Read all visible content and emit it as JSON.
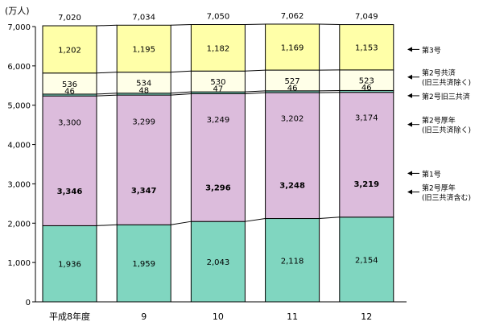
{
  "chart_data": {
    "type": "bar",
    "stacked": true,
    "y_unit_label": "(万人)",
    "ylim": [
      0,
      7000
    ],
    "y_ticks": [
      0,
      1000,
      2000,
      3000,
      4000,
      5000,
      6000,
      7000
    ],
    "y_tick_labels": [
      "0",
      "1,000",
      "2,000",
      "3,000",
      "4,000",
      "5,000",
      "6,000",
      "7,000"
    ],
    "categories": [
      "平成8年度",
      "9",
      "10",
      "11",
      "12"
    ],
    "totals": [
      7020,
      7034,
      7050,
      7062,
      7049
    ],
    "total_labels": [
      "7,020",
      "7,034",
      "7,050",
      "7,062",
      "7,049"
    ],
    "series": [
      {
        "name": "第1号",
        "values": [
          1936,
          1959,
          2043,
          2118,
          2154
        ],
        "labels": [
          "1,936",
          "1,959",
          "2,043",
          "2,118",
          "2,154"
        ],
        "color": "#80d6c0"
      },
      {
        "name": "第2号厚年(旧三共済除く)",
        "values": [
          3300,
          3299,
          3249,
          3202,
          3174
        ],
        "labels": [
          "3,300",
          "3,299",
          "3,249",
          "3,202",
          "3,174"
        ],
        "color": "#dcbcdc"
      },
      {
        "name": "第2号旧三共済",
        "values": [
          46,
          48,
          47,
          46,
          46
        ],
        "labels": [
          "46",
          "48",
          "47",
          "46",
          "46"
        ],
        "color": "#80d6c0"
      },
      {
        "name": "第2号共済(旧三共済除く)",
        "values": [
          536,
          534,
          530,
          527,
          523
        ],
        "labels": [
          "536",
          "534",
          "530",
          "527",
          "523"
        ],
        "color": "#ffffe8"
      },
      {
        "name": "第3号",
        "values": [
          1202,
          1195,
          1182,
          1169,
          1153
        ],
        "labels": [
          "1,202",
          "1,195",
          "1,182",
          "1,169",
          "1,153"
        ],
        "color": "#ffffa8"
      }
    ],
    "bracket": {
      "name": "第2号厚年(旧三共済含む)",
      "values": [
        3346,
        3347,
        3296,
        3248,
        3219
      ],
      "labels": [
        "3,346",
        "3,347",
        "3,296",
        "3,248",
        "3,219"
      ]
    },
    "legend": [
      {
        "lines": [
          "第3号"
        ],
        "series_index": 4
      },
      {
        "lines": [
          "第2号共済",
          "(旧三共済除く)"
        ],
        "series_index": 3
      },
      {
        "lines": [
          "第2号旧三共済"
        ],
        "series_index": 2
      },
      {
        "lines": [
          "第2号厚年",
          "(旧三共済除く)"
        ],
        "series_index": 1
      },
      {
        "lines": [
          "第2号厚年",
          "(旧三共済含む)"
        ],
        "series_index": -1
      },
      {
        "lines": [
          "第1号"
        ],
        "series_index": 0
      }
    ]
  }
}
